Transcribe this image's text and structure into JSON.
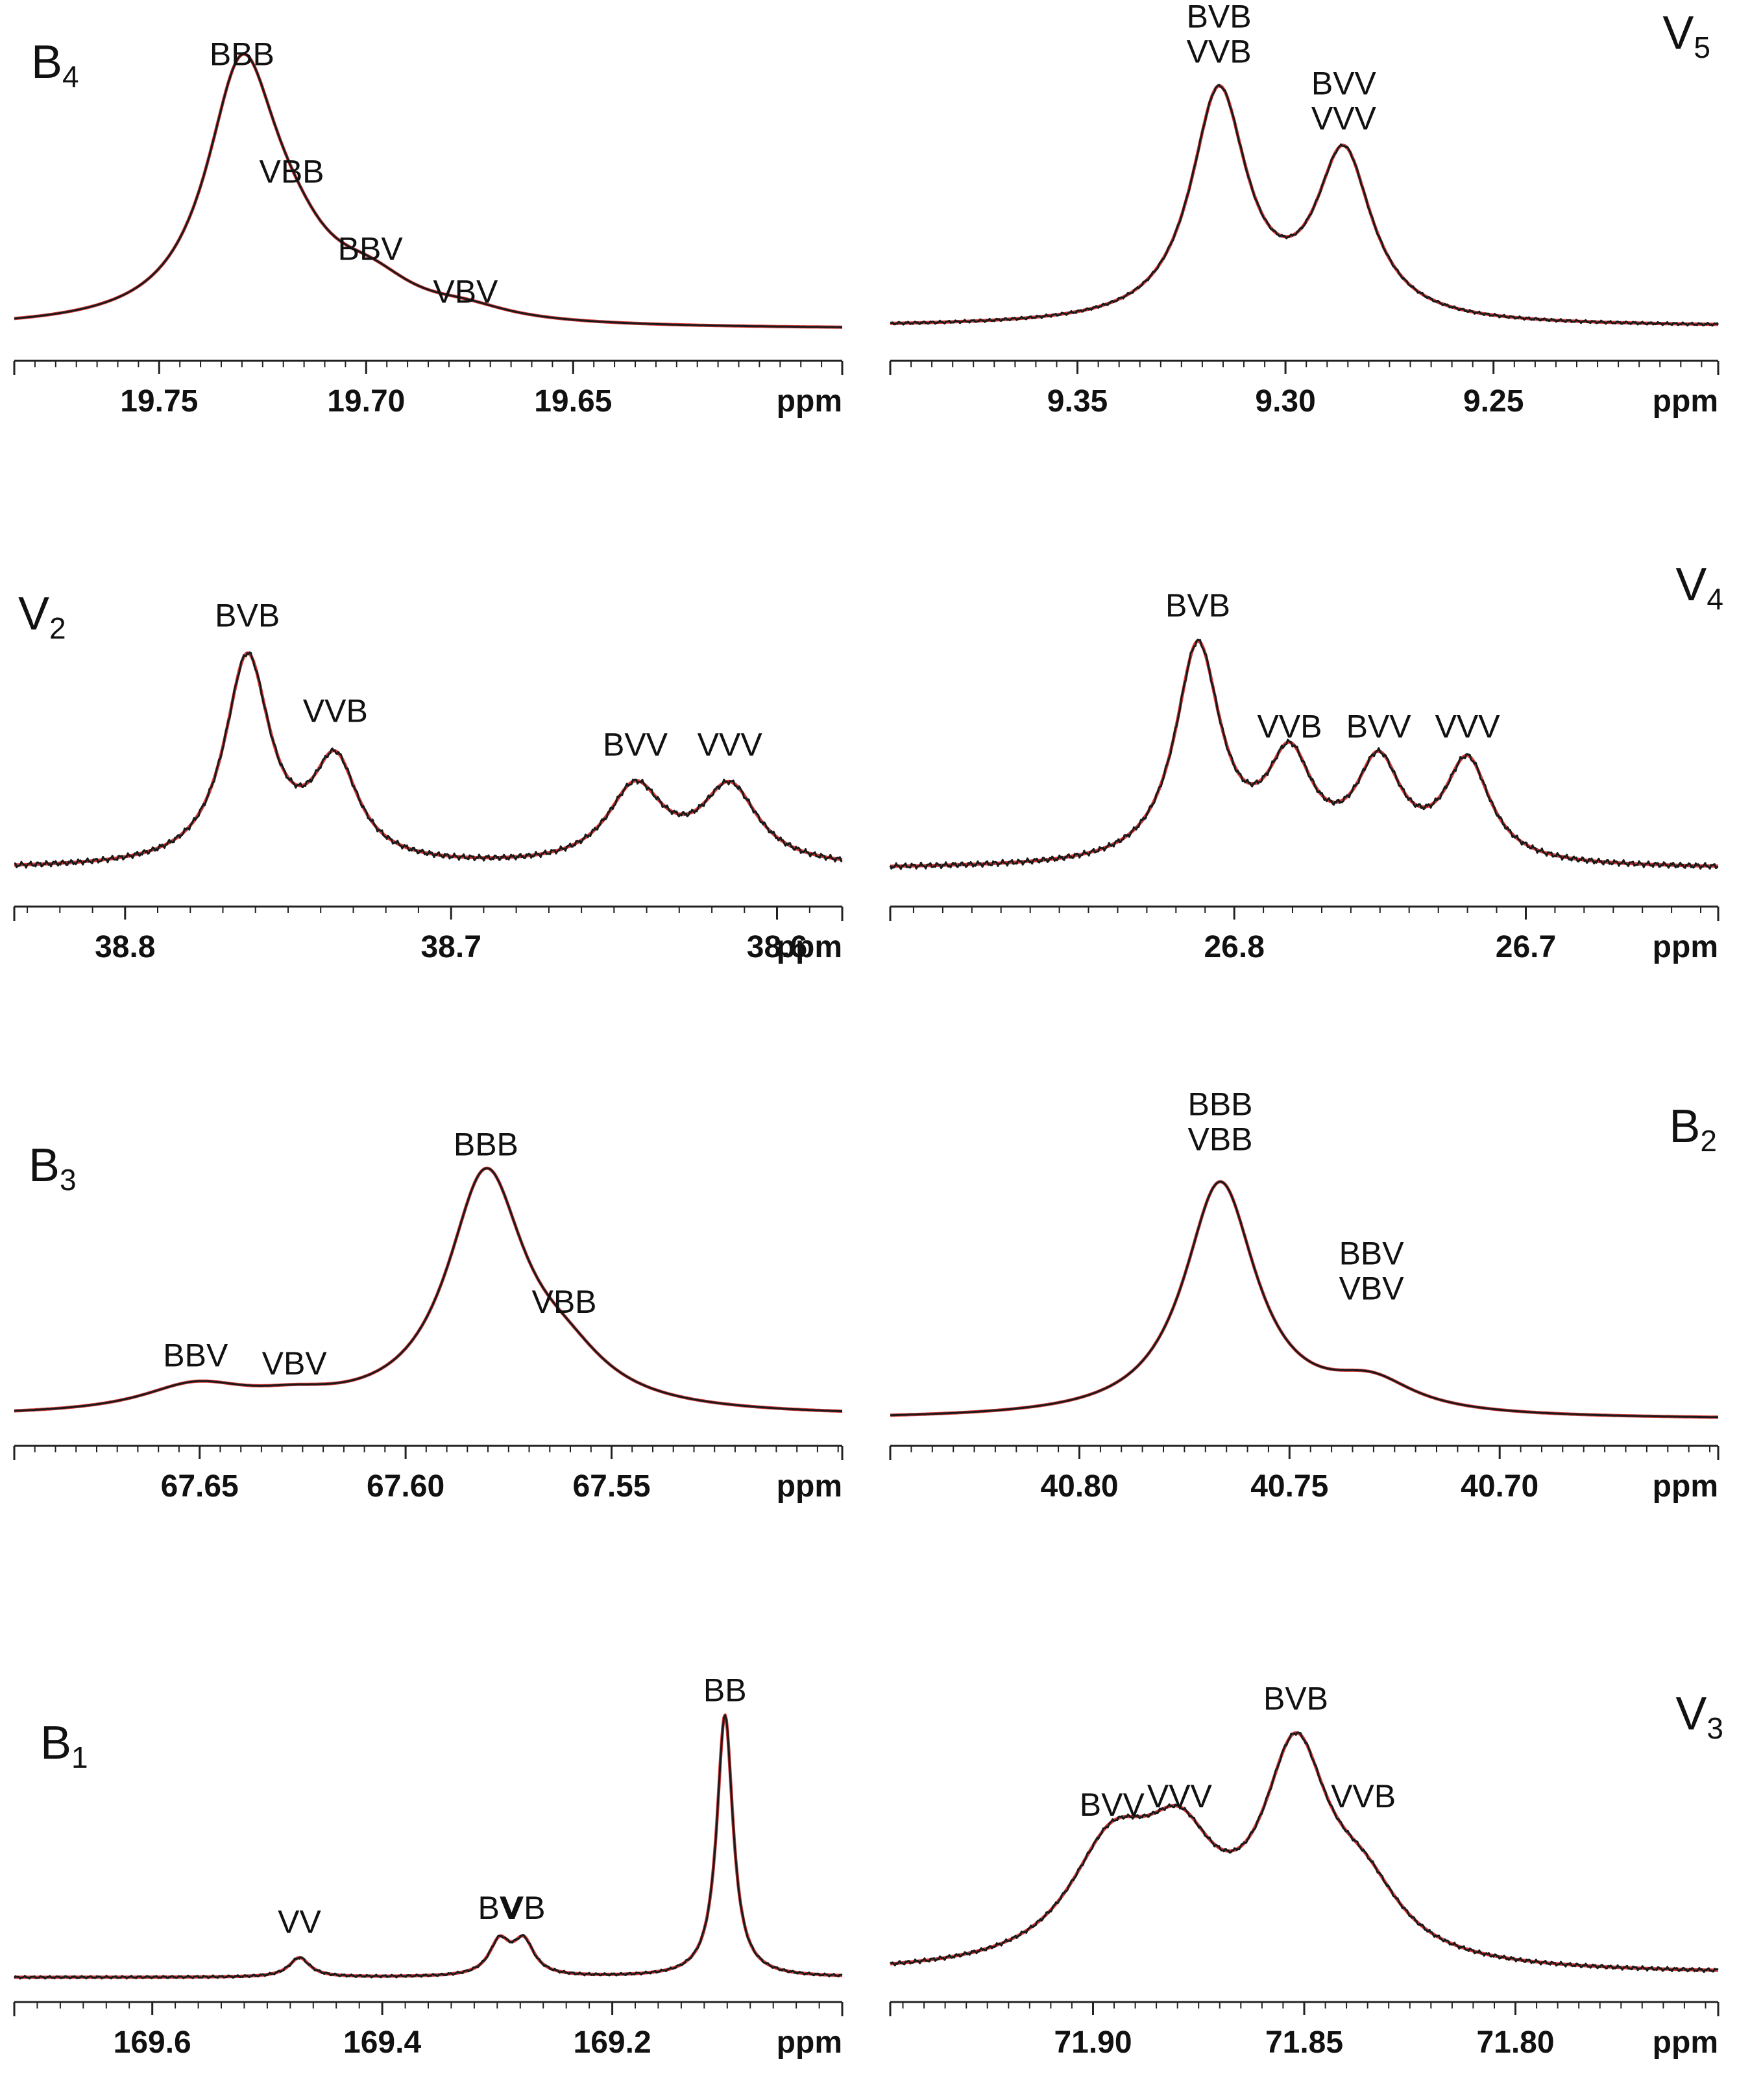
{
  "colors": {
    "spectrum": "#1a1a1a",
    "fit": "#d93a3a",
    "axis": "#222222"
  },
  "chart_data": [
    {
      "type": "line",
      "panel_label": "B",
      "panel_sub": "4",
      "xlabel": "ppm",
      "xlim": [
        19.785,
        19.585
      ],
      "ylim": [
        0,
        1.07
      ],
      "ticks": [
        "19.75",
        "19.70",
        "19.65"
      ],
      "tick_values": [
        19.75,
        19.7,
        19.65
      ],
      "peaks": [
        {
          "center": 19.73,
          "height": 0.93,
          "width": 0.0105,
          "label": "BBB",
          "label_y": 1.02
        },
        {
          "center": 19.718,
          "height": 0.16,
          "width": 0.012,
          "label": "VBB",
          "label_y": 0.58
        },
        {
          "center": 19.699,
          "height": 0.12,
          "width": 0.013,
          "label": "BBV",
          "label_y": 0.29
        },
        {
          "center": 19.676,
          "height": 0.04,
          "width": 0.013,
          "label": "VBV",
          "label_y": 0.13
        }
      ],
      "baseline": 0.03,
      "noise": 0.0,
      "show_fit": true
    },
    {
      "type": "line",
      "panel_label": "V",
      "panel_sub": "5",
      "xlabel": "ppm",
      "xlim": [
        9.395,
        9.196
      ],
      "ylim": [
        0,
        1.07
      ],
      "ticks": [
        "9.35",
        "9.30",
        "9.25"
      ],
      "tick_values": [
        9.35,
        9.3,
        9.25
      ],
      "peaks": [
        {
          "center": 9.316,
          "height": 0.86,
          "width": 0.0082,
          "label": [
            "BVB",
            "VVB"
          ],
          "label_y": 1.03
        },
        {
          "center": 9.286,
          "height": 0.62,
          "width": 0.0082,
          "label": [
            "BVV",
            "VVV"
          ],
          "label_y": 0.78
        }
      ],
      "baseline": 0.04,
      "noise": 0.006,
      "show_fit": true
    },
    {
      "type": "line",
      "panel_label": "V",
      "panel_sub": "2",
      "xlabel": "ppm",
      "xlim": [
        38.834,
        38.58
      ],
      "ylim": [
        0,
        1.07
      ],
      "ticks": [
        "38.8",
        "38.7",
        "38.6"
      ],
      "tick_values": [
        38.8,
        38.7,
        38.6
      ],
      "peaks": [
        {
          "center": 38.7625,
          "height": 0.8,
          "width": 0.0085,
          "label": "BVB",
          "label_y": 0.98
        },
        {
          "center": 38.7355,
          "height": 0.38,
          "width": 0.0085,
          "label": "VVB",
          "label_y": 0.61
        },
        {
          "center": 38.6435,
          "height": 0.3,
          "width": 0.0105,
          "label": "BVV",
          "label_y": 0.48
        },
        {
          "center": 38.6145,
          "height": 0.3,
          "width": 0.0105,
          "label": "VVV",
          "label_y": 0.48
        }
      ],
      "baseline": 0.04,
      "noise": 0.012,
      "show_fit": true
    },
    {
      "type": "line",
      "panel_label": "V",
      "panel_sub": "4",
      "xlabel": "ppm",
      "xlim": [
        26.918,
        26.634
      ],
      "ylim": [
        0,
        1.07
      ],
      "ticks": [
        "26.8",
        "26.7"
      ],
      "tick_values": [
        26.8,
        26.7
      ],
      "peaks": [
        {
          "center": 26.8125,
          "height": 0.84,
          "width": 0.0095,
          "label": "BVB",
          "label_y": 1.02
        },
        {
          "center": 26.781,
          "height": 0.38,
          "width": 0.0095,
          "label": "VVB",
          "label_y": 0.55
        },
        {
          "center": 26.7505,
          "height": 0.37,
          "width": 0.0095,
          "label": "BVV",
          "label_y": 0.55
        },
        {
          "center": 26.72,
          "height": 0.39,
          "width": 0.0095,
          "label": "VVV",
          "label_y": 0.55
        }
      ],
      "baseline": 0.04,
      "noise": 0.012,
      "show_fit": true
    },
    {
      "type": "line",
      "panel_label": "B",
      "panel_sub": "3",
      "xlabel": "ppm",
      "xlim": [
        67.695,
        67.494
      ],
      "ylim": [
        0,
        1.07
      ],
      "ticks": [
        "67.65",
        "67.60",
        "67.55"
      ],
      "tick_values": [
        67.65,
        67.6,
        67.55
      ],
      "peaks": [
        {
          "center": 67.5805,
          "height": 0.88,
          "width": 0.0115,
          "label": "BBB",
          "label_y": 1.02
        },
        {
          "center": 67.5615,
          "height": 0.14,
          "width": 0.013,
          "label": "VBB",
          "label_y": 0.43
        },
        {
          "center": 67.651,
          "height": 0.1,
          "width": 0.016,
          "label": "BBV",
          "label_y": 0.23
        },
        {
          "center": 67.627,
          "height": 0.035,
          "width": 0.013,
          "label": "VBV",
          "label_y": 0.2
        }
      ],
      "baseline": 0.04,
      "noise": 0.0,
      "show_fit": true
    },
    {
      "type": "line",
      "panel_label": "B",
      "panel_sub": "2",
      "xlabel": "ppm",
      "xlim": [
        40.845,
        40.648
      ],
      "ylim": [
        0,
        1.07
      ],
      "ticks": [
        "40.80",
        "40.75",
        "40.70"
      ],
      "tick_values": [
        40.8,
        40.75,
        40.7
      ],
      "peaks": [
        {
          "center": 40.7665,
          "height": 0.88,
          "width": 0.0105,
          "label": [
            "BBB",
            "VBB"
          ],
          "label_y": 1.04
        },
        {
          "center": 40.7305,
          "height": 0.11,
          "width": 0.0125,
          "label": [
            "BBV",
            "VBV"
          ],
          "label_y": 0.48
        }
      ],
      "baseline": 0.03,
      "noise": 0.0,
      "show_fit": true
    },
    {
      "type": "line",
      "panel_label": "B",
      "panel_sub": "1",
      "xlabel": "ppm",
      "xlim": [
        169.72,
        169.0
      ],
      "ylim": [
        0,
        1.07
      ],
      "ticks": [
        "169.6",
        "169.4",
        "169.2"
      ],
      "tick_values": [
        169.6,
        169.4,
        169.2
      ],
      "peaks": [
        {
          "center": 169.102,
          "height": 0.94,
          "width": 0.0085,
          "label": "BB",
          "label_y": 1.02
        },
        {
          "center": 169.298,
          "height": 0.12,
          "width": 0.011,
          "label": "BV",
          "label_y": 0.24
        },
        {
          "center": 169.277,
          "height": 0.12,
          "width": 0.011,
          "label": "VB",
          "label_y": 0.24
        },
        {
          "center": 169.472,
          "height": 0.07,
          "width": 0.011,
          "label": "VV",
          "label_y": 0.19
        }
      ],
      "baseline": 0.03,
      "noise": 0.005,
      "show_fit": true
    },
    {
      "type": "line",
      "panel_label": "V",
      "panel_sub": "3",
      "xlabel": "ppm",
      "xlim": [
        71.948,
        71.752
      ],
      "ylim": [
        0,
        1.07
      ],
      "ticks": [
        "71.90",
        "71.85",
        "71.80"
      ],
      "tick_values": [
        71.9,
        71.85,
        71.8
      ],
      "peaks": [
        {
          "center": 71.852,
          "height": 0.72,
          "width": 0.0095,
          "label": "BVB",
          "label_y": 0.99
        },
        {
          "center": 71.836,
          "height": 0.22,
          "width": 0.011,
          "label": "VVB",
          "label_y": 0.64
        },
        {
          "center": 71.8955,
          "height": 0.4,
          "width": 0.0125,
          "label": "BVV",
          "label_y": 0.61
        },
        {
          "center": 71.8795,
          "height": 0.36,
          "width": 0.0105,
          "label": "VVV",
          "label_y": 0.64
        }
      ],
      "baseline": 0.04,
      "noise": 0.008,
      "show_fit": true
    }
  ]
}
